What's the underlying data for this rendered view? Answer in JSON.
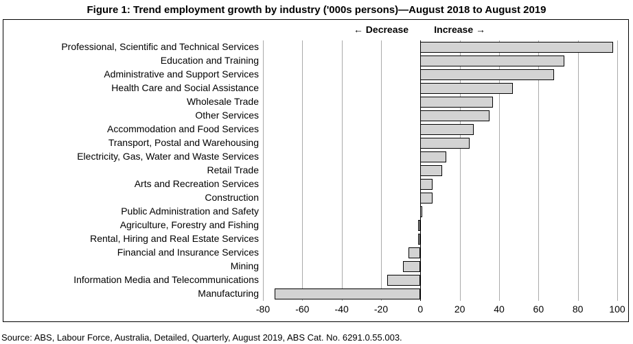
{
  "title": "Figure 1: Trend employment growth by industry ('000s persons)—August 2018 to August 2019",
  "source": "Source: ABS, Labour Force, Australia, Detailed, Quarterly, August 2019, ABS Cat. No. 6291.0.55.003.",
  "chart": {
    "type": "bar-horizontal",
    "xlim": [
      -80,
      100
    ],
    "xticks": [
      -80,
      -60,
      -40,
      -20,
      0,
      20,
      40,
      60,
      80,
      100
    ],
    "background_color": "#ffffff",
    "grid_color": "#a9a9a9",
    "bar_fill": "#d3d3d3",
    "bar_border": "#000000",
    "text_color": "#000000",
    "label_fontsize": 14,
    "title_fontsize": 15,
    "annot_decrease": "←  Decrease",
    "annot_increase": "Increase  →",
    "categories": [
      {
        "label": "Professional, Scientific and Technical Services",
        "value": 98
      },
      {
        "label": "Education and Training",
        "value": 73
      },
      {
        "label": "Administrative and Support Services",
        "value": 68
      },
      {
        "label": "Health Care and Social Assistance",
        "value": 47
      },
      {
        "label": "Wholesale Trade",
        "value": 37
      },
      {
        "label": "Other Services",
        "value": 35
      },
      {
        "label": "Accommodation and Food Services",
        "value": 27
      },
      {
        "label": "Transport, Postal and Warehousing",
        "value": 25
      },
      {
        "label": "Electricity, Gas, Water and Waste Services",
        "value": 13
      },
      {
        "label": "Retail Trade",
        "value": 11
      },
      {
        "label": "Arts and Recreation Services",
        "value": 6
      },
      {
        "label": "Construction",
        "value": 6
      },
      {
        "label": "Public Administration and Safety",
        "value": 1
      },
      {
        "label": "Agriculture, Forestry and Fishing",
        "value": -1
      },
      {
        "label": "Rental, Hiring and Real Estate Services",
        "value": -1
      },
      {
        "label": "Financial and Insurance Services",
        "value": -6
      },
      {
        "label": "Mining",
        "value": -9
      },
      {
        "label": "Information Media and Telecommunications",
        "value": -17
      },
      {
        "label": "Manufacturing",
        "value": -74
      }
    ]
  }
}
